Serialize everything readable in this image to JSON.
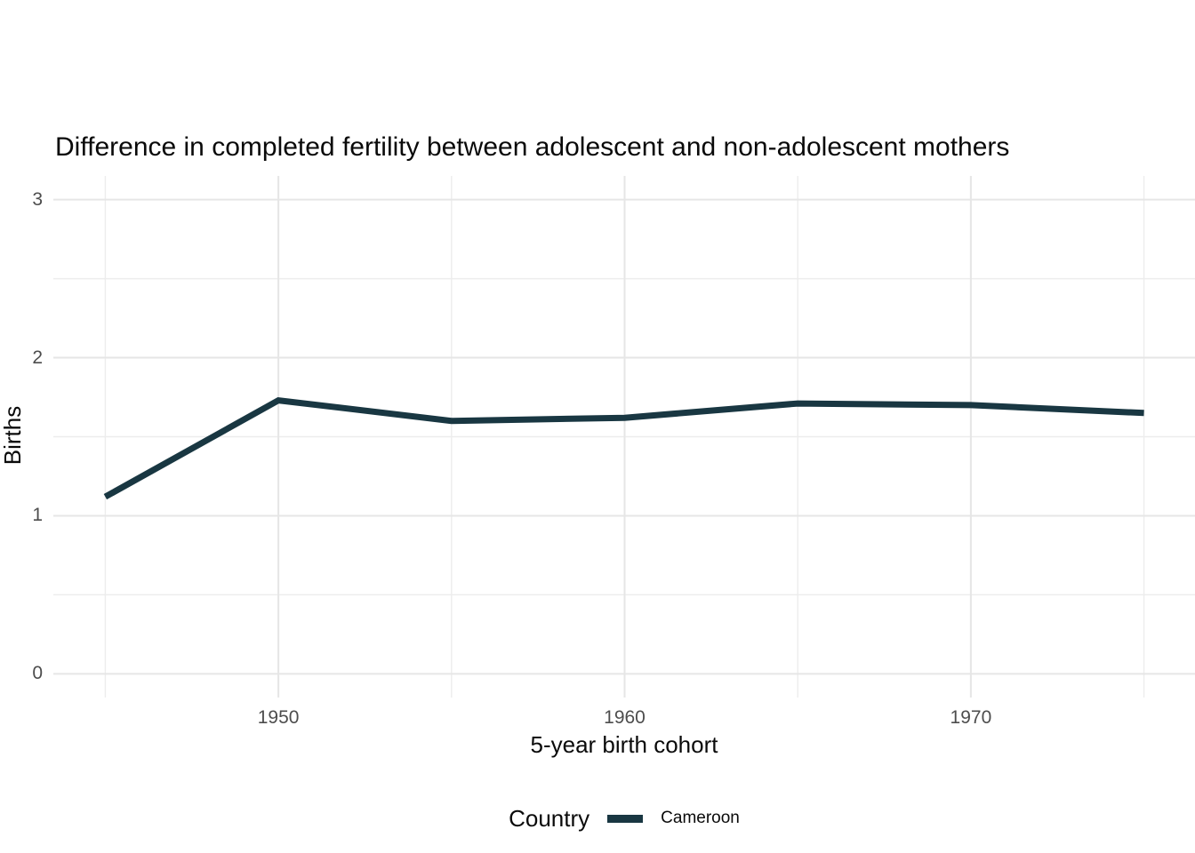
{
  "chart_data": {
    "type": "line",
    "title": "Difference in completed fertility between adolescent and non-adolescent mothers",
    "xlabel": "5-year birth cohort",
    "ylabel": "Births",
    "x": [
      1945,
      1950,
      1955,
      1960,
      1965,
      1970,
      1975
    ],
    "series": [
      {
        "name": "Cameroon",
        "values": [
          1.12,
          1.73,
          1.6,
          1.62,
          1.71,
          1.7,
          1.65
        ],
        "color": "#193742"
      }
    ],
    "x_major_ticks": [
      1950,
      1960,
      1970
    ],
    "x_gridlines": [
      1945,
      1950,
      1955,
      1960,
      1965,
      1970,
      1975
    ],
    "y_major_ticks": [
      0,
      1,
      2,
      3
    ],
    "y_minor_ticks": [
      0.5,
      1.5,
      2.5
    ],
    "xlim": [
      1943.5,
      1976.5
    ],
    "ylim": [
      -0.15,
      3.15
    ],
    "grid": "on",
    "legend": {
      "title": "Country",
      "position": "bottom"
    }
  },
  "colors": {
    "line": "#193742",
    "grid_major": "#e6e6e6",
    "grid_minor": "#ededed",
    "tick_text": "#4d4d4d",
    "title_text": "#0a0a0a",
    "background": "#ffffff"
  }
}
